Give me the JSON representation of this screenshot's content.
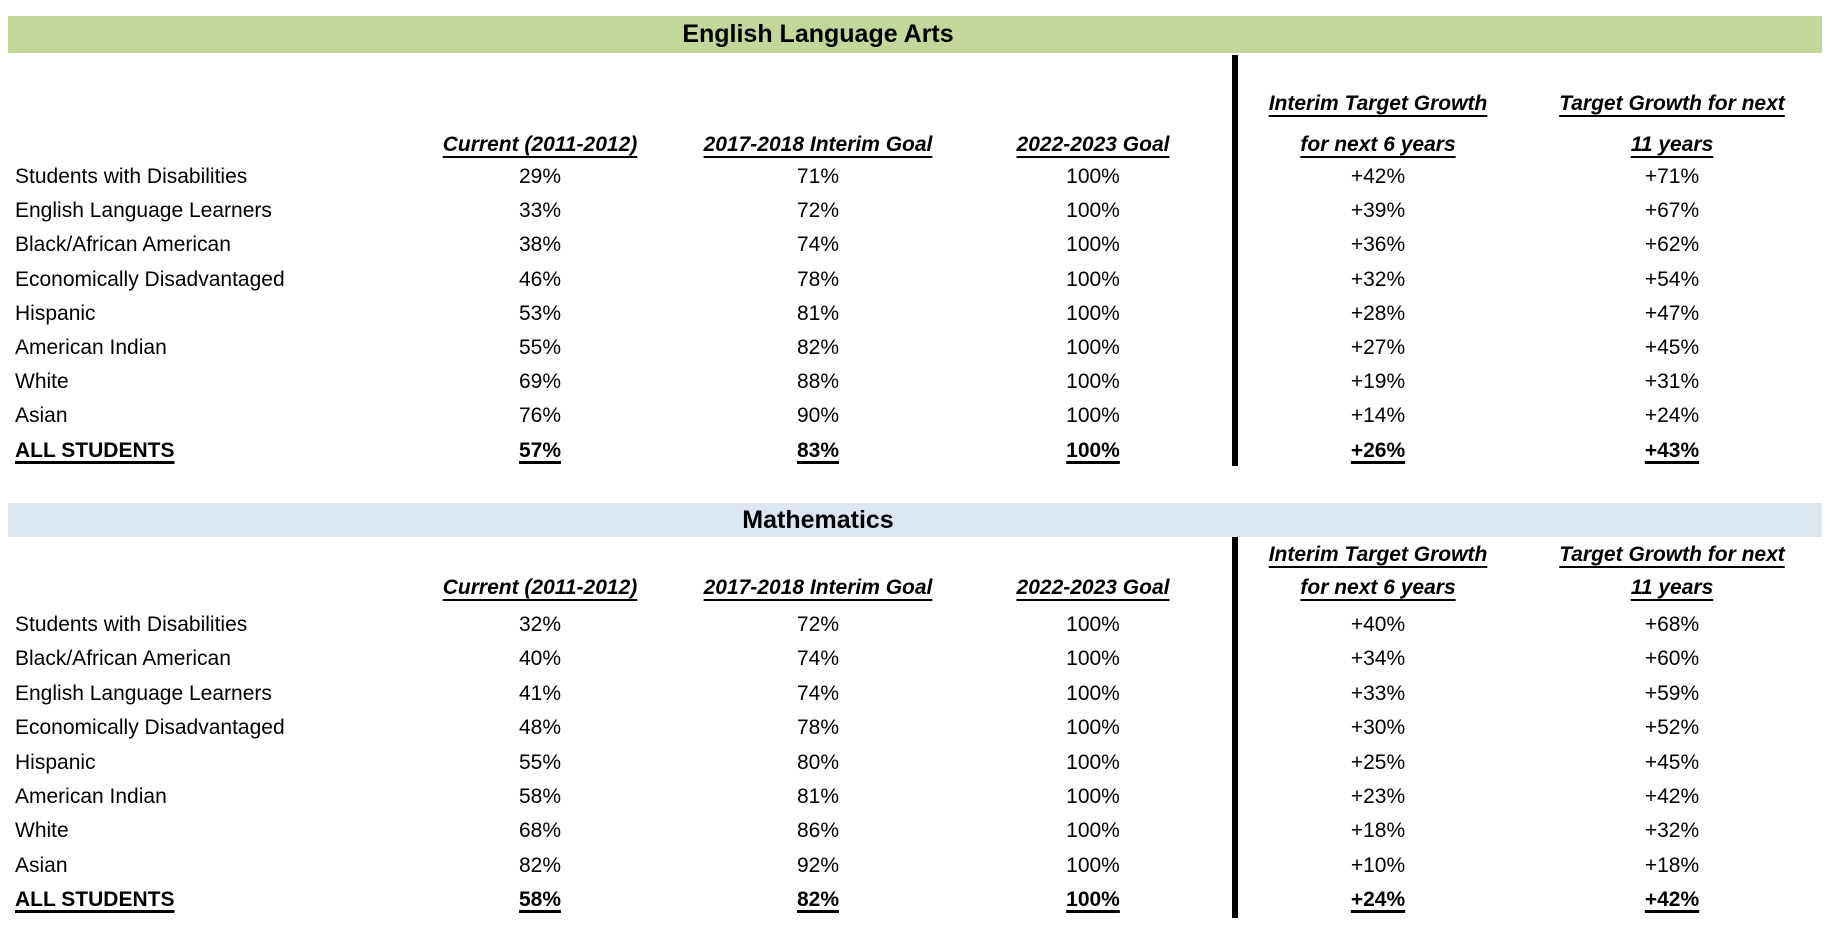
{
  "page": {
    "background": "#ffffff",
    "divider_color": "#000000"
  },
  "sections": [
    {
      "title": "English Language Arts",
      "band_color": "#c4d79b",
      "column_headers": [
        {
          "lines": [
            "Current (2011-2012)"
          ]
        },
        {
          "lines": [
            "2017-2018 Interim Goal"
          ]
        },
        {
          "lines": [
            "2022-2023 Goal"
          ]
        },
        {
          "lines": [
            "Interim Target Growth",
            "for next 6 years"
          ]
        },
        {
          "lines": [
            "Target Growth for next",
            "11 years"
          ]
        }
      ],
      "rows": [
        {
          "label": "Students with Disabilities",
          "values": [
            "29%",
            "71%",
            "100%",
            "+42%",
            "+71%"
          ],
          "emphasis": false
        },
        {
          "label": "English Language Learners",
          "values": [
            "33%",
            "72%",
            "100%",
            "+39%",
            "+67%"
          ],
          "emphasis": false
        },
        {
          "label": "Black/African American",
          "values": [
            "38%",
            "74%",
            "100%",
            "+36%",
            "+62%"
          ],
          "emphasis": false
        },
        {
          "label": "Economically Disadvantaged",
          "values": [
            "46%",
            "78%",
            "100%",
            "+32%",
            "+54%"
          ],
          "emphasis": false
        },
        {
          "label": "Hispanic",
          "values": [
            "53%",
            "81%",
            "100%",
            "+28%",
            "+47%"
          ],
          "emphasis": false
        },
        {
          "label": "American Indian",
          "values": [
            "55%",
            "82%",
            "100%",
            "+27%",
            "+45%"
          ],
          "emphasis": false
        },
        {
          "label": "White",
          "values": [
            "69%",
            "88%",
            "100%",
            "+19%",
            "+31%"
          ],
          "emphasis": false
        },
        {
          "label": "Asian",
          "values": [
            "76%",
            "90%",
            "100%",
            "+14%",
            "+24%"
          ],
          "emphasis": false
        },
        {
          "label": "ALL STUDENTS",
          "values": [
            "57%",
            "83%",
            "100%",
            "+26%",
            "+43%"
          ],
          "emphasis": true
        }
      ]
    },
    {
      "title": "Mathematics",
      "band_color": "#dce6f1",
      "column_headers": [
        {
          "lines": [
            "Current (2011-2012)"
          ]
        },
        {
          "lines": [
            "2017-2018 Interim Goal"
          ]
        },
        {
          "lines": [
            "2022-2023 Goal"
          ]
        },
        {
          "lines": [
            "Interim Target Growth",
            "for next 6 years"
          ]
        },
        {
          "lines": [
            "Target Growth for next",
            "11 years"
          ]
        }
      ],
      "rows": [
        {
          "label": "Students with Disabilities",
          "values": [
            "32%",
            "72%",
            "100%",
            "+40%",
            "+68%"
          ],
          "emphasis": false
        },
        {
          "label": "Black/African American",
          "values": [
            "40%",
            "74%",
            "100%",
            "+34%",
            "+60%"
          ],
          "emphasis": false
        },
        {
          "label": "English Language Learners",
          "values": [
            "41%",
            "74%",
            "100%",
            "+33%",
            "+59%"
          ],
          "emphasis": false
        },
        {
          "label": "Economically Disadvantaged",
          "values": [
            "48%",
            "78%",
            "100%",
            "+30%",
            "+52%"
          ],
          "emphasis": false
        },
        {
          "label": "Hispanic",
          "values": [
            "55%",
            "80%",
            "100%",
            "+25%",
            "+45%"
          ],
          "emphasis": false
        },
        {
          "label": "American Indian",
          "values": [
            "58%",
            "81%",
            "100%",
            "+23%",
            "+42%"
          ],
          "emphasis": false
        },
        {
          "label": "White",
          "values": [
            "68%",
            "86%",
            "100%",
            "+18%",
            "+32%"
          ],
          "emphasis": false
        },
        {
          "label": "Asian",
          "values": [
            "82%",
            "92%",
            "100%",
            "+10%",
            "+18%"
          ],
          "emphasis": false
        },
        {
          "label": "ALL STUDENTS",
          "values": [
            "58%",
            "82%",
            "100%",
            "+24%",
            "+42%"
          ],
          "emphasis": true
        }
      ]
    }
  ]
}
